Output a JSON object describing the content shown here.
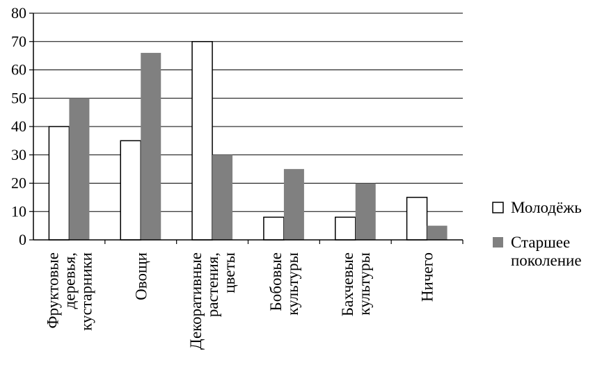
{
  "chart_data": {
    "type": "bar",
    "title": "",
    "xlabel": "",
    "ylabel": "",
    "ylim": [
      0,
      80
    ],
    "yticks": [
      0,
      10,
      20,
      30,
      40,
      50,
      60,
      70,
      80
    ],
    "grid": true,
    "legend_position": "right",
    "categories": [
      [
        "Фруктовые",
        "деревья,",
        "кустарники"
      ],
      [
        "Овощи"
      ],
      [
        "Декоративные",
        "растения,",
        "цветы"
      ],
      [
        "Бобовые",
        "культуры"
      ],
      [
        "Бахчевые",
        "культуры"
      ],
      [
        "Ничего"
      ]
    ],
    "series": [
      {
        "name": "Молодёжь",
        "values": [
          40,
          35,
          70,
          8,
          8,
          15
        ],
        "color": "#ffffff"
      },
      {
        "name": "Старшее поколение",
        "values": [
          50,
          66,
          30,
          25,
          20,
          5
        ],
        "color": "#808080"
      }
    ],
    "legend_lines": [
      [
        "Молодёжь"
      ],
      [
        "Старшее",
        "поколение"
      ]
    ]
  }
}
